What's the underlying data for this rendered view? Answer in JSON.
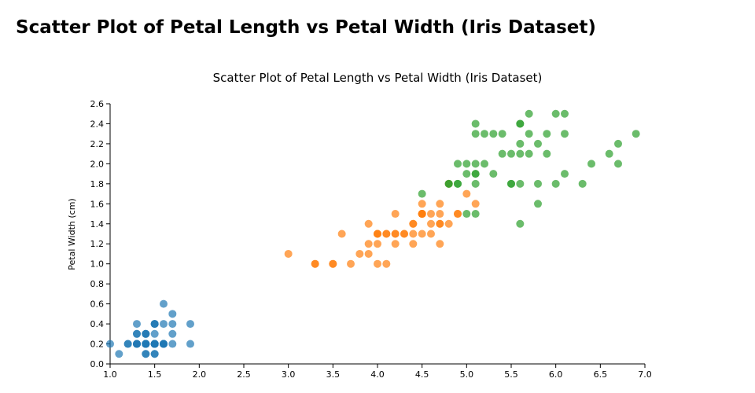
{
  "page": {
    "title": "Scatter Plot of Petal Length vs Petal Width (Iris Dataset)"
  },
  "chart_data": {
    "type": "scatter",
    "title": "Scatter Plot of Petal Length vs Petal Width (Iris Dataset)",
    "xlabel": "",
    "ylabel": "Petal Width (cm)",
    "xlim": [
      1.0,
      7.0
    ],
    "ylim": [
      0.0,
      2.6
    ],
    "xticks": [
      "1.0",
      "1.5",
      "2.0",
      "2.5",
      "3.0",
      "3.5",
      "4.0",
      "4.5",
      "5.0",
      "5.5",
      "6.0",
      "6.5",
      "7.0"
    ],
    "yticks": [
      "0.0",
      "0.2",
      "0.4",
      "0.6",
      "0.8",
      "1.0",
      "1.2",
      "1.4",
      "1.6",
      "1.8",
      "2.0",
      "2.2",
      "2.4",
      "2.6"
    ],
    "grid": false,
    "legend": "none",
    "series": [
      {
        "color": "#1f77b4",
        "points": [
          [
            1.4,
            0.2
          ],
          [
            1.4,
            0.2
          ],
          [
            1.3,
            0.2
          ],
          [
            1.5,
            0.2
          ],
          [
            1.4,
            0.2
          ],
          [
            1.7,
            0.4
          ],
          [
            1.4,
            0.3
          ],
          [
            1.5,
            0.2
          ],
          [
            1.4,
            0.2
          ],
          [
            1.5,
            0.1
          ],
          [
            1.5,
            0.2
          ],
          [
            1.6,
            0.2
          ],
          [
            1.4,
            0.1
          ],
          [
            1.1,
            0.1
          ],
          [
            1.2,
            0.2
          ],
          [
            1.5,
            0.4
          ],
          [
            1.3,
            0.4
          ],
          [
            1.4,
            0.3
          ],
          [
            1.7,
            0.3
          ],
          [
            1.5,
            0.3
          ],
          [
            1.7,
            0.2
          ],
          [
            1.5,
            0.4
          ],
          [
            1.0,
            0.2
          ],
          [
            1.7,
            0.5
          ],
          [
            1.9,
            0.2
          ],
          [
            1.6,
            0.2
          ],
          [
            1.6,
            0.4
          ],
          [
            1.5,
            0.2
          ],
          [
            1.4,
            0.2
          ],
          [
            1.6,
            0.2
          ],
          [
            1.6,
            0.2
          ],
          [
            1.5,
            0.4
          ],
          [
            1.5,
            0.1
          ],
          [
            1.4,
            0.2
          ],
          [
            1.5,
            0.2
          ],
          [
            1.2,
            0.2
          ],
          [
            1.3,
            0.2
          ],
          [
            1.4,
            0.1
          ],
          [
            1.3,
            0.2
          ],
          [
            1.5,
            0.2
          ],
          [
            1.3,
            0.3
          ],
          [
            1.3,
            0.3
          ],
          [
            1.3,
            0.2
          ],
          [
            1.6,
            0.6
          ],
          [
            1.9,
            0.4
          ],
          [
            1.4,
            0.3
          ],
          [
            1.6,
            0.2
          ],
          [
            1.4,
            0.2
          ],
          [
            1.5,
            0.2
          ],
          [
            1.4,
            0.2
          ]
        ]
      },
      {
        "color": "#ff7f0e",
        "points": [
          [
            4.7,
            1.4
          ],
          [
            4.5,
            1.5
          ],
          [
            4.9,
            1.5
          ],
          [
            4.0,
            1.3
          ],
          [
            4.6,
            1.5
          ],
          [
            4.5,
            1.3
          ],
          [
            4.7,
            1.6
          ],
          [
            3.3,
            1.0
          ],
          [
            4.6,
            1.3
          ],
          [
            3.9,
            1.4
          ],
          [
            3.5,
            1.0
          ],
          [
            4.2,
            1.5
          ],
          [
            4.0,
            1.0
          ],
          [
            4.7,
            1.4
          ],
          [
            3.6,
            1.3
          ],
          [
            4.4,
            1.4
          ],
          [
            4.5,
            1.5
          ],
          [
            4.1,
            1.0
          ],
          [
            4.5,
            1.5
          ],
          [
            3.9,
            1.1
          ],
          [
            4.8,
            1.8
          ],
          [
            4.0,
            1.3
          ],
          [
            4.9,
            1.5
          ],
          [
            4.7,
            1.2
          ],
          [
            4.3,
            1.3
          ],
          [
            4.4,
            1.4
          ],
          [
            4.8,
            1.4
          ],
          [
            5.0,
            1.7
          ],
          [
            4.5,
            1.5
          ],
          [
            3.5,
            1.0
          ],
          [
            3.8,
            1.1
          ],
          [
            3.7,
            1.0
          ],
          [
            3.9,
            1.2
          ],
          [
            5.1,
            1.6
          ],
          [
            4.5,
            1.5
          ],
          [
            4.5,
            1.6
          ],
          [
            4.7,
            1.5
          ],
          [
            4.4,
            1.3
          ],
          [
            4.1,
            1.3
          ],
          [
            4.0,
            1.3
          ],
          [
            4.4,
            1.2
          ],
          [
            4.6,
            1.4
          ],
          [
            4.0,
            1.2
          ],
          [
            3.3,
            1.0
          ],
          [
            4.2,
            1.3
          ],
          [
            4.2,
            1.2
          ],
          [
            4.2,
            1.3
          ],
          [
            4.3,
            1.3
          ],
          [
            3.0,
            1.1
          ],
          [
            4.1,
            1.3
          ]
        ]
      },
      {
        "color": "#2ca02c",
        "points": [
          [
            6.0,
            2.5
          ],
          [
            5.1,
            1.9
          ],
          [
            5.9,
            2.1
          ],
          [
            5.6,
            1.8
          ],
          [
            5.8,
            2.2
          ],
          [
            6.6,
            2.1
          ],
          [
            4.5,
            1.7
          ],
          [
            6.3,
            1.8
          ],
          [
            5.8,
            1.8
          ],
          [
            6.1,
            2.5
          ],
          [
            5.1,
            2.0
          ],
          [
            5.3,
            1.9
          ],
          [
            5.5,
            2.1
          ],
          [
            5.0,
            2.0
          ],
          [
            5.1,
            2.4
          ],
          [
            5.3,
            2.3
          ],
          [
            5.5,
            1.8
          ],
          [
            6.7,
            2.2
          ],
          [
            6.9,
            2.3
          ],
          [
            5.0,
            1.5
          ],
          [
            5.7,
            2.3
          ],
          [
            4.9,
            2.0
          ],
          [
            6.7,
            2.0
          ],
          [
            4.9,
            1.8
          ],
          [
            5.7,
            2.1
          ],
          [
            6.0,
            1.8
          ],
          [
            4.8,
            1.8
          ],
          [
            4.9,
            1.8
          ],
          [
            5.6,
            2.1
          ],
          [
            5.8,
            1.6
          ],
          [
            6.1,
            1.9
          ],
          [
            6.4,
            2.0
          ],
          [
            5.6,
            2.2
          ],
          [
            5.1,
            1.5
          ],
          [
            5.6,
            1.4
          ],
          [
            6.1,
            2.3
          ],
          [
            5.6,
            2.4
          ],
          [
            5.5,
            1.8
          ],
          [
            4.8,
            1.8
          ],
          [
            5.4,
            2.1
          ],
          [
            5.6,
            2.4
          ],
          [
            5.1,
            2.3
          ],
          [
            5.1,
            1.9
          ],
          [
            5.9,
            2.3
          ],
          [
            5.7,
            2.5
          ],
          [
            5.2,
            2.3
          ],
          [
            5.0,
            1.9
          ],
          [
            5.2,
            2.0
          ],
          [
            5.4,
            2.3
          ],
          [
            5.1,
            1.8
          ]
        ]
      }
    ]
  }
}
